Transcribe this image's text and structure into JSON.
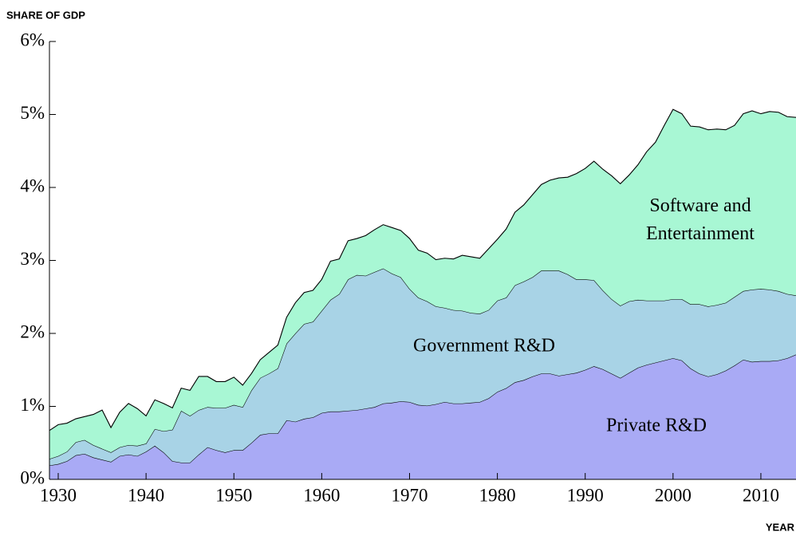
{
  "chart_data": {
    "type": "area",
    "stacked": true,
    "y_label": "SHARE OF GDP",
    "x_label": "YEAR",
    "x": [
      1929,
      1930,
      1931,
      1932,
      1933,
      1934,
      1935,
      1936,
      1937,
      1938,
      1939,
      1940,
      1941,
      1942,
      1943,
      1944,
      1945,
      1946,
      1947,
      1948,
      1949,
      1950,
      1951,
      1952,
      1953,
      1954,
      1955,
      1956,
      1957,
      1958,
      1959,
      1960,
      1961,
      1962,
      1963,
      1964,
      1965,
      1966,
      1967,
      1968,
      1969,
      1970,
      1971,
      1972,
      1973,
      1974,
      1975,
      1976,
      1977,
      1978,
      1979,
      1980,
      1981,
      1982,
      1983,
      1984,
      1985,
      1986,
      1987,
      1988,
      1989,
      1990,
      1991,
      1992,
      1993,
      1994,
      1995,
      1996,
      1997,
      1998,
      1999,
      2000,
      2001,
      2002,
      2003,
      2004,
      2005,
      2006,
      2007,
      2008,
      2009,
      2010,
      2011,
      2012,
      2013,
      2014
    ],
    "series": [
      {
        "name": "Private R&D",
        "color": "#a9aaf5",
        "values": [
          0.19,
          0.21,
          0.25,
          0.33,
          0.35,
          0.3,
          0.27,
          0.24,
          0.32,
          0.34,
          0.32,
          0.38,
          0.46,
          0.37,
          0.25,
          0.23,
          0.23,
          0.34,
          0.44,
          0.4,
          0.37,
          0.4,
          0.4,
          0.5,
          0.61,
          0.63,
          0.63,
          0.81,
          0.79,
          0.83,
          0.85,
          0.91,
          0.93,
          0.93,
          0.94,
          0.95,
          0.97,
          0.99,
          1.04,
          1.05,
          1.07,
          1.06,
          1.02,
          1.01,
          1.03,
          1.06,
          1.04,
          1.04,
          1.05,
          1.06,
          1.11,
          1.2,
          1.25,
          1.33,
          1.36,
          1.41,
          1.45,
          1.45,
          1.42,
          1.44,
          1.46,
          1.5,
          1.55,
          1.51,
          1.45,
          1.39,
          1.46,
          1.53,
          1.57,
          1.6,
          1.63,
          1.66,
          1.63,
          1.52,
          1.45,
          1.41,
          1.44,
          1.49,
          1.56,
          1.64,
          1.61,
          1.62,
          1.62,
          1.63,
          1.66,
          1.71
        ]
      },
      {
        "name": "Government R&D",
        "color": "#a8d3e6",
        "values": [
          0.09,
          0.11,
          0.13,
          0.18,
          0.19,
          0.17,
          0.15,
          0.13,
          0.12,
          0.13,
          0.14,
          0.11,
          0.23,
          0.29,
          0.43,
          0.71,
          0.64,
          0.61,
          0.55,
          0.58,
          0.61,
          0.62,
          0.59,
          0.72,
          0.78,
          0.82,
          0.89,
          1.05,
          1.21,
          1.3,
          1.31,
          1.4,
          1.53,
          1.61,
          1.8,
          1.85,
          1.82,
          1.85,
          1.85,
          1.77,
          1.7,
          1.55,
          1.47,
          1.43,
          1.34,
          1.29,
          1.28,
          1.27,
          1.23,
          1.21,
          1.21,
          1.25,
          1.24,
          1.33,
          1.35,
          1.36,
          1.41,
          1.41,
          1.44,
          1.37,
          1.28,
          1.24,
          1.18,
          1.08,
          1.02,
          0.99,
          0.98,
          0.93,
          0.88,
          0.85,
          0.82,
          0.81,
          0.84,
          0.88,
          0.95,
          0.96,
          0.95,
          0.93,
          0.94,
          0.94,
          0.99,
          0.99,
          0.98,
          0.95,
          0.88,
          0.81
        ]
      },
      {
        "name": "Software and Entertainment",
        "color": "#a8f7d4",
        "values": [
          0.39,
          0.43,
          0.39,
          0.32,
          0.32,
          0.42,
          0.53,
          0.34,
          0.48,
          0.57,
          0.51,
          0.38,
          0.4,
          0.38,
          0.3,
          0.31,
          0.35,
          0.46,
          0.42,
          0.36,
          0.36,
          0.38,
          0.3,
          0.23,
          0.25,
          0.29,
          0.32,
          0.36,
          0.42,
          0.43,
          0.43,
          0.43,
          0.53,
          0.48,
          0.53,
          0.5,
          0.55,
          0.58,
          0.6,
          0.63,
          0.64,
          0.69,
          0.65,
          0.66,
          0.64,
          0.68,
          0.7,
          0.76,
          0.77,
          0.76,
          0.84,
          0.84,
          0.94,
          1.0,
          1.05,
          1.13,
          1.18,
          1.24,
          1.27,
          1.33,
          1.45,
          1.52,
          1.63,
          1.66,
          1.69,
          1.67,
          1.73,
          1.85,
          2.04,
          2.17,
          2.4,
          2.6,
          2.54,
          2.44,
          2.43,
          2.42,
          2.41,
          2.37,
          2.35,
          2.43,
          2.45,
          2.4,
          2.44,
          2.45,
          2.43,
          2.44
        ]
      }
    ],
    "xlim": [
      1929,
      2014
    ],
    "xticks": [
      1930,
      1940,
      1950,
      1960,
      1970,
      1980,
      1990,
      2000,
      2010
    ],
    "ylim": [
      0,
      6
    ],
    "yticks": [
      {
        "value": 0,
        "label": "0%"
      },
      {
        "value": 1,
        "label": "1%"
      },
      {
        "value": 2,
        "label": "2%"
      },
      {
        "value": 3,
        "label": "3%"
      },
      {
        "value": 4,
        "label": "4%"
      },
      {
        "value": 5,
        "label": "5%"
      },
      {
        "value": 6,
        "label": "6%"
      }
    ],
    "grid": false
  }
}
